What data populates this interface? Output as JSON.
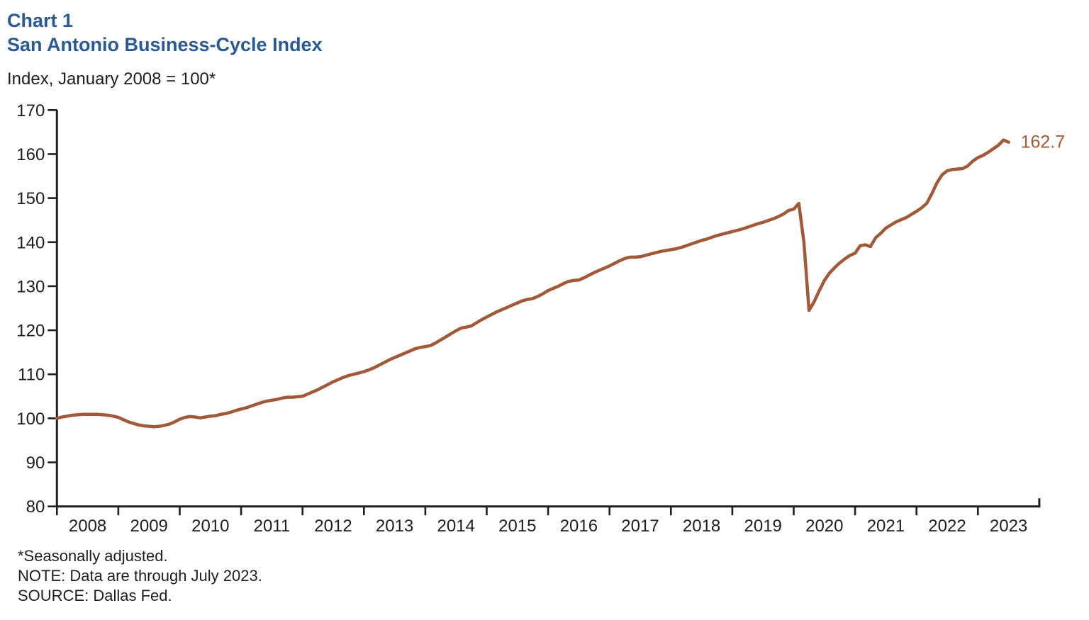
{
  "title": {
    "line1": "Chart 1",
    "line2": "San Antonio Business-Cycle Index"
  },
  "subtitle": "Index, January 2008 = 100*",
  "footnotes": [
    "*Seasonally adjusted.",
    "NOTE: Data are through July 2023.",
    "SOURCE: Dallas Fed."
  ],
  "colors": {
    "title_blue": "#2B5991",
    "line_brown": "#A05A3A",
    "axis_black": "#1e1e1e"
  },
  "chart_data": {
    "type": "line",
    "title": "San Antonio Business-Cycle Index",
    "xlabel": "",
    "ylabel": "Index, January 2008 = 100*",
    "ylim": [
      80,
      170
    ],
    "grid": false,
    "legend_position": "none",
    "y_axis": {
      "ticks": [
        80,
        90,
        100,
        110,
        120,
        130,
        140,
        150,
        160,
        170
      ]
    },
    "x_axis": {
      "tick_years": [
        2008,
        2009,
        2010,
        2011,
        2012,
        2013,
        2014,
        2015,
        2016,
        2017,
        2018,
        2019,
        2020,
        2021,
        2022,
        2023
      ],
      "labels": [
        "2008",
        "2009",
        "2010",
        "2011",
        "2012",
        "2013",
        "2014",
        "2015",
        "2016",
        "2017",
        "2018",
        "2019",
        "2020",
        "2021",
        "2022",
        "2023"
      ],
      "axis_end_year": 2024
    },
    "end_label": "162.7",
    "series": [
      {
        "name": "San Antonio Business-Cycle Index",
        "frequency": "monthly",
        "start": "2008-01",
        "end": "2023-07",
        "values": [
          100.0,
          100.3,
          100.5,
          100.7,
          100.8,
          100.9,
          100.9,
          100.9,
          100.9,
          100.8,
          100.7,
          100.5,
          100.2,
          99.7,
          99.2,
          98.8,
          98.5,
          98.3,
          98.2,
          98.1,
          98.2,
          98.4,
          98.7,
          99.2,
          99.8,
          100.2,
          100.4,
          100.3,
          100.1,
          100.3,
          100.5,
          100.6,
          100.9,
          101.1,
          101.4,
          101.8,
          102.1,
          102.4,
          102.8,
          103.2,
          103.6,
          103.9,
          104.1,
          104.3,
          104.6,
          104.8,
          104.8,
          104.9,
          105.0,
          105.5,
          106.0,
          106.5,
          107.1,
          107.7,
          108.3,
          108.8,
          109.3,
          109.7,
          110.0,
          110.3,
          110.6,
          111.0,
          111.5,
          112.1,
          112.7,
          113.3,
          113.8,
          114.3,
          114.8,
          115.3,
          115.8,
          116.1,
          116.3,
          116.5,
          117.1,
          117.8,
          118.5,
          119.2,
          119.9,
          120.5,
          120.7,
          121.0,
          121.7,
          122.4,
          123.0,
          123.6,
          124.2,
          124.7,
          125.2,
          125.7,
          126.2,
          126.7,
          127.0,
          127.2,
          127.7,
          128.3,
          129.0,
          129.5,
          130.0,
          130.6,
          131.1,
          131.3,
          131.4,
          131.9,
          132.5,
          133.1,
          133.6,
          134.1,
          134.6,
          135.2,
          135.8,
          136.3,
          136.6,
          136.6,
          136.7,
          137.0,
          137.3,
          137.6,
          137.9,
          138.1,
          138.3,
          138.5,
          138.8,
          139.2,
          139.6,
          140.0,
          140.4,
          140.7,
          141.1,
          141.5,
          141.8,
          142.1,
          142.4,
          142.7,
          143.0,
          143.4,
          143.8,
          144.2,
          144.5,
          144.9,
          145.3,
          145.8,
          146.4,
          147.2,
          147.5,
          148.8,
          140.0,
          124.5,
          126.5,
          129.0,
          131.3,
          133.0,
          134.2,
          135.3,
          136.2,
          137.0,
          137.5,
          139.2,
          139.4,
          139.0,
          141.0,
          142.0,
          143.2,
          143.9,
          144.6,
          145.1,
          145.6,
          146.3,
          147.0,
          147.8,
          148.8,
          151.0,
          153.5,
          155.3,
          156.2,
          156.5,
          156.6,
          156.7,
          157.3,
          158.4,
          159.2,
          159.7,
          160.4,
          161.2,
          162.0,
          163.2,
          162.7
        ]
      }
    ]
  }
}
